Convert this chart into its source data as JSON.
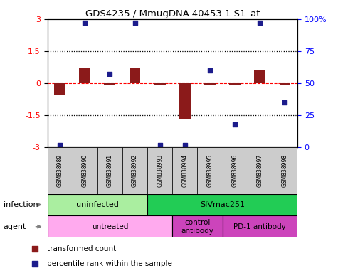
{
  "title": "GDS4235 / MmugDNA.40453.1.S1_at",
  "samples": [
    "GSM838989",
    "GSM838990",
    "GSM838991",
    "GSM838992",
    "GSM838993",
    "GSM838994",
    "GSM838995",
    "GSM838996",
    "GSM838997",
    "GSM838998"
  ],
  "transformed_count": [
    -0.55,
    0.75,
    -0.05,
    0.75,
    -0.05,
    -1.65,
    -0.05,
    -0.08,
    0.6,
    -0.05
  ],
  "percentile_rank": [
    2,
    97,
    57,
    97,
    2,
    2,
    60,
    18,
    97,
    35
  ],
  "ylim_left": [
    -3,
    3
  ],
  "ylim_right": [
    0,
    100
  ],
  "yticks_left": [
    -3,
    -1.5,
    0,
    1.5,
    3
  ],
  "yticks_right": [
    0,
    25,
    50,
    75,
    100
  ],
  "bar_color": "#8B1A1A",
  "dot_color": "#1C1C8C",
  "infection_labels": [
    {
      "text": "uninfected",
      "start": 0,
      "end": 3,
      "color": "#AAEEA0"
    },
    {
      "text": "SIVmac251",
      "start": 4,
      "end": 9,
      "color": "#22CC55"
    }
  ],
  "agent_labels": [
    {
      "text": "untreated",
      "start": 0,
      "end": 4,
      "color": "#FFAAEE"
    },
    {
      "text": "control\nantibody",
      "start": 5,
      "end": 6,
      "color": "#CC44BB"
    },
    {
      "text": "PD-1 antibody",
      "start": 7,
      "end": 9,
      "color": "#CC44BB"
    }
  ],
  "legend_items": [
    {
      "color": "#8B1A1A",
      "label": "transformed count"
    },
    {
      "color": "#1C1C8C",
      "label": "percentile rank within the sample"
    }
  ]
}
